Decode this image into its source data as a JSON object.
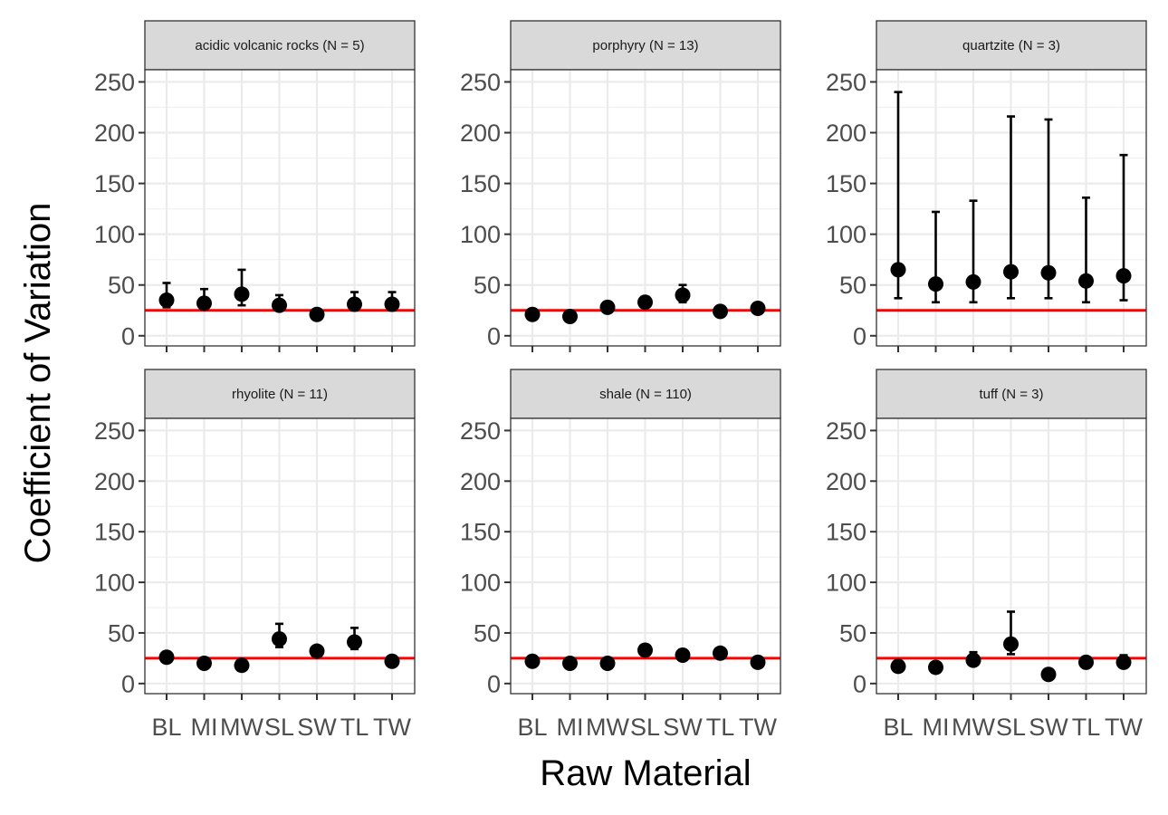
{
  "chart_data": {
    "type": "scatter",
    "xlabel": "Raw Material",
    "ylabel": "Coefficient of Variation",
    "ylim": [
      -10,
      262
    ],
    "y_ticks": [
      0,
      50,
      100,
      150,
      200,
      250
    ],
    "categories": [
      "BL",
      "MI",
      "MW",
      "SL",
      "SW",
      "TL",
      "TW"
    ],
    "reference_line": {
      "y": 25,
      "color": "#ff0000"
    },
    "grid": true,
    "facets": [
      {
        "label": "acidic volcanic rocks (N = 5)",
        "values": [
          35,
          32,
          41,
          30,
          21,
          31,
          31
        ],
        "lower": [
          28,
          26,
          30,
          25,
          21,
          25,
          25
        ],
        "upper": [
          52,
          46,
          65,
          40,
          21,
          43,
          43
        ]
      },
      {
        "label": "porphyry (N = 13)",
        "values": [
          21,
          19,
          28,
          33,
          40,
          24,
          27
        ],
        "lower": [
          21,
          19,
          28,
          28,
          33,
          24,
          27
        ],
        "upper": [
          21,
          19,
          28,
          38,
          50,
          24,
          27
        ]
      },
      {
        "label": "quartzite (N = 3)",
        "values": [
          65,
          51,
          53,
          63,
          62,
          54,
          59
        ],
        "lower": [
          37,
          33,
          33,
          37,
          37,
          33,
          35
        ],
        "upper": [
          240,
          122,
          133,
          216,
          213,
          136,
          178
        ]
      },
      {
        "label": "rhyolite (N = 11)",
        "values": [
          26,
          20,
          18,
          44,
          32,
          41,
          22
        ],
        "lower": [
          26,
          20,
          18,
          36,
          28,
          34,
          22
        ],
        "upper": [
          26,
          20,
          18,
          59,
          36,
          55,
          22
        ]
      },
      {
        "label": "shale (N = 110)",
        "values": [
          22,
          20,
          20,
          33,
          28,
          30,
          21
        ],
        "lower": [
          22,
          20,
          20,
          33,
          28,
          30,
          21
        ],
        "upper": [
          22,
          20,
          20,
          33,
          28,
          30,
          21
        ]
      },
      {
        "label": "tuff (N = 3)",
        "values": [
          17,
          16,
          23,
          39,
          9,
          21,
          21
        ],
        "lower": [
          17,
          16,
          18,
          29,
          9,
          18,
          18
        ],
        "upper": [
          17,
          16,
          31,
          71,
          9,
          24,
          28
        ]
      }
    ]
  }
}
